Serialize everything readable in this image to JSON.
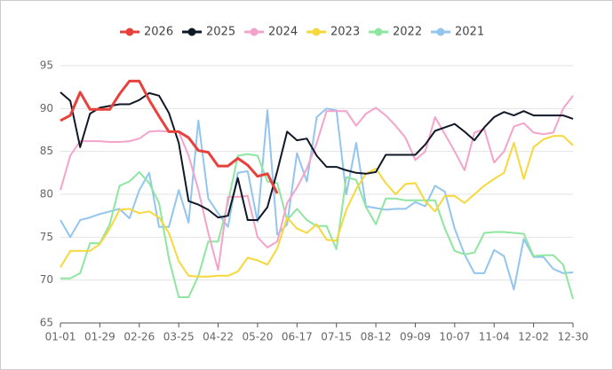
{
  "chart_data": {
    "type": "line",
    "categories": [
      "01-01",
      null,
      null,
      null,
      "01-29",
      null,
      null,
      null,
      "02-26",
      null,
      null,
      null,
      "03-25",
      null,
      null,
      null,
      "04-22",
      null,
      null,
      null,
      "05-20",
      null,
      null,
      null,
      "06-17",
      null,
      null,
      null,
      "07-15",
      null,
      null,
      null,
      "08-12",
      null,
      null,
      null,
      "09-09",
      null,
      null,
      null,
      "10-07",
      null,
      null,
      null,
      "11-04",
      null,
      null,
      null,
      "12-02",
      null,
      null,
      null,
      "12-30"
    ],
    "ylim": [
      65,
      95
    ],
    "yticks": [
      65,
      70,
      75,
      80,
      85,
      90,
      95
    ],
    "grid": true,
    "legend": "top",
    "series": [
      {
        "name": "2026",
        "color": "#e8413c",
        "values": [
          88.6,
          89.2,
          91.9,
          89.9,
          89.9,
          89.9,
          91.7,
          93.2,
          93.2,
          91,
          89.1,
          87.3,
          87.3,
          86.6,
          85.1,
          84.9,
          83.3,
          83.3,
          84.2,
          83.4,
          82.1,
          82.4,
          80.1,
          null,
          null,
          null,
          null,
          null,
          null,
          null,
          null,
          null,
          null,
          null,
          null,
          null,
          null,
          null,
          null,
          null,
          null,
          null,
          null,
          null,
          null,
          null,
          null,
          null,
          null,
          null,
          null,
          null,
          null
        ]
      },
      {
        "name": "2025",
        "color": "#111827",
        "values": [
          91.9,
          90.9,
          85.5,
          89.4,
          90.1,
          90.3,
          90.5,
          90.5,
          91,
          91.8,
          91.5,
          89.5,
          86,
          79.2,
          78.8,
          78.2,
          77.3,
          77.5,
          81.9,
          77,
          77,
          78.5,
          82.7,
          87.3,
          86.3,
          86.5,
          84.5,
          83.2,
          83.2,
          82.8,
          82.5,
          82.4,
          82.6,
          84.6,
          84.6,
          84.6,
          84.6,
          85.8,
          87.4,
          87.8,
          88.2,
          87.3,
          86.3,
          87.8,
          89,
          89.6,
          89.2,
          89.7,
          89.2,
          89.2,
          89.2,
          89.2,
          88.8
        ]
      },
      {
        "name": "2024",
        "color": "#f4a3cb",
        "values": [
          80.5,
          84.5,
          86.2,
          86.2,
          86.2,
          86.1,
          86.1,
          86.2,
          86.5,
          87.3,
          87.4,
          87.3,
          87.3,
          84.5,
          80.5,
          75.5,
          71.2,
          79.7,
          79.7,
          79.8,
          75,
          73.8,
          74.5,
          79,
          80.8,
          83,
          86,
          89.7,
          89.7,
          89.7,
          88,
          89.4,
          90.1,
          89.2,
          88,
          86.6,
          84,
          85,
          89,
          87,
          85,
          82.8,
          87.2,
          87.6,
          83.7,
          85,
          87.9,
          88.3,
          87.2,
          87,
          87.2,
          90,
          91.5
        ]
      },
      {
        "name": "2023",
        "color": "#f7d83c",
        "values": [
          71.5,
          73.4,
          73.4,
          73.4,
          74.2,
          76,
          78.2,
          78.3,
          77.8,
          78,
          77.3,
          75.5,
          72.2,
          70.5,
          70.4,
          70.4,
          70.5,
          70.5,
          71,
          72.6,
          72.3,
          71.8,
          73.7,
          77.3,
          76,
          75.5,
          76.5,
          74.7,
          74.6,
          78.2,
          80.6,
          82.4,
          83,
          81.3,
          80,
          81.2,
          81.3,
          79.2,
          78,
          79.8,
          79.8,
          79,
          80,
          81,
          81.8,
          82.5,
          86,
          81.8,
          85.5,
          86.4,
          86.8,
          86.8,
          85.7
        ]
      },
      {
        "name": "2022",
        "color": "#8ee6a0",
        "values": [
          70.2,
          70.2,
          70.8,
          74.3,
          74.3,
          76.5,
          81,
          81.5,
          82.6,
          81.3,
          79,
          72.5,
          68,
          68,
          70.5,
          74.5,
          74.5,
          79,
          84.5,
          84.7,
          84.5,
          81.5,
          81.3,
          77,
          78.3,
          77,
          76.3,
          76.3,
          73.6,
          82,
          81.7,
          78.5,
          76.5,
          79.5,
          79.5,
          79.3,
          79.3,
          79.3,
          79.3,
          76,
          73.4,
          73,
          73.2,
          75.5,
          75.6,
          75.6,
          75.5,
          75.4,
          72.8,
          72.9,
          72.9,
          71.8,
          67.8
        ]
      },
      {
        "name": "2021",
        "color": "#93c5ef",
        "values": [
          77,
          75,
          77,
          77.3,
          77.7,
          78,
          78.3,
          77.2,
          80.5,
          82.5,
          76.2,
          76.2,
          80.5,
          76.7,
          88.6,
          79.5,
          77.8,
          76.2,
          82.5,
          82.7,
          76.8,
          89.8,
          75.3,
          76.5,
          84.8,
          81.5,
          89,
          90,
          89.8,
          80,
          86,
          78.6,
          78.4,
          78.2,
          78.3,
          78.3,
          79.1,
          78.6,
          81,
          80.3,
          76,
          73,
          70.8,
          70.8,
          73.5,
          72.8,
          68.9,
          74.8,
          72.7,
          72.7,
          71.3,
          70.8,
          70.9
        ]
      }
    ]
  }
}
